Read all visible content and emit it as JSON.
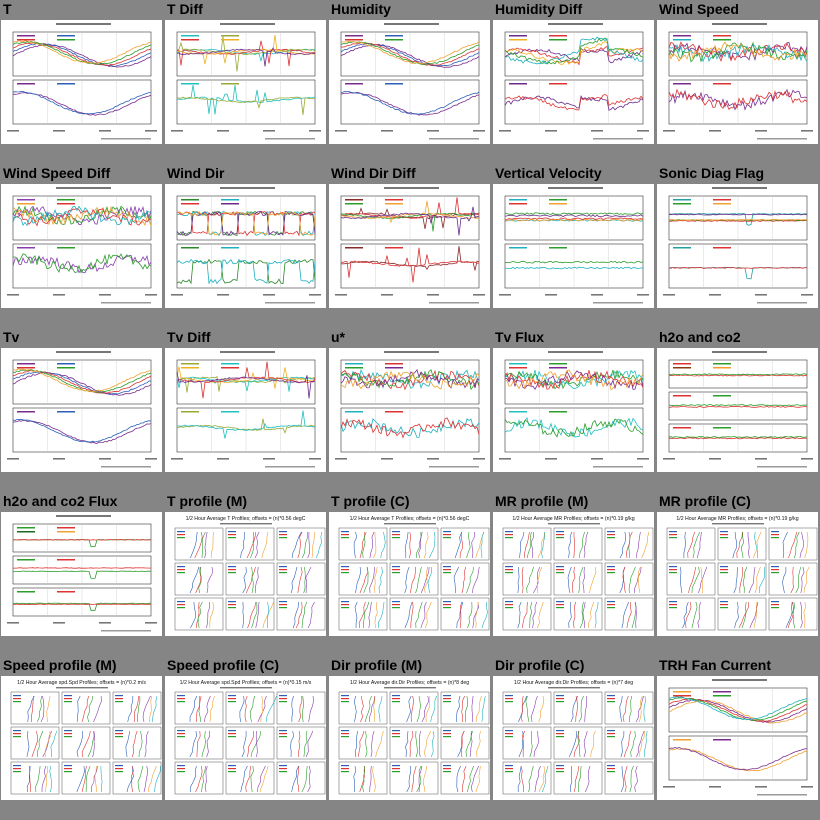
{
  "page": {
    "cells": [
      {
        "title": "T",
        "kind": "ts",
        "panels": 2,
        "variant": "smooth",
        "colors": [
          "#7a2b8c",
          "#2b5fb8",
          "#d33",
          "#2a9d2a",
          "#f0a030",
          "#20b0c0"
        ]
      },
      {
        "title": "T Diff",
        "kind": "ts",
        "panels": 2,
        "variant": "spiky",
        "colors": [
          "#20c0c0",
          "#9a3",
          "#d33",
          "#f0b020",
          "#6a2b8c",
          "#2a9d2a"
        ]
      },
      {
        "title": "Humidity",
        "kind": "ts",
        "panels": 2,
        "variant": "smooth",
        "colors": [
          "#7a2b8c",
          "#2b5fb8",
          "#d33",
          "#2a9d2a",
          "#f0a030",
          "#20b0c0"
        ]
      },
      {
        "title": "Humidity Diff",
        "kind": "ts",
        "panels": 2,
        "variant": "diff",
        "colors": [
          "#6a2b8c",
          "#d33",
          "#f0b020",
          "#2a9d2a",
          "#20b0c0",
          "#2b5fb8"
        ]
      },
      {
        "title": "Wind Speed",
        "kind": "ts",
        "panels": 2,
        "variant": "noisy",
        "colors": [
          "#7a2b8c",
          "#d33",
          "#20b0c0",
          "#2a9d2a",
          "#f0a030",
          "#2b5fb8"
        ]
      },
      {
        "title": "Wind Speed Diff",
        "kind": "ts",
        "panels": 2,
        "variant": "noisy",
        "colors": [
          "#8a3cb0",
          "#2a9d2a",
          "#f0a030",
          "#d33",
          "#20b0c0",
          "#2b5fb8"
        ]
      },
      {
        "title": "Wind Dir",
        "kind": "ts",
        "panels": 2,
        "variant": "blocks",
        "colors": [
          "#2a8a2a",
          "#20b0c0",
          "#d33",
          "#6a2b8c",
          "#f0a030",
          "#2b5fb8"
        ]
      },
      {
        "title": "Wind Dir Diff",
        "kind": "ts",
        "panels": 2,
        "variant": "spiky",
        "colors": [
          "#8a2a2a",
          "#d33",
          "#2a9d2a",
          "#f0a030",
          "#6a2b8c",
          "#2b5fb8"
        ]
      },
      {
        "title": "Vertical Velocity",
        "kind": "ts",
        "panels": 2,
        "variant": "flat",
        "colors": [
          "#20b0c0",
          "#2a9d2a",
          "#d33",
          "#f0a030",
          "#6a2b8c",
          "#2b5fb8"
        ]
      },
      {
        "title": "Sonic Diag Flag",
        "kind": "ts",
        "panels": 2,
        "variant": "flag",
        "colors": [
          "#20a0a0",
          "#d33",
          "#2a9d2a",
          "#f0a030",
          "#6a2b8c",
          "#2b5fb8"
        ]
      },
      {
        "title": "Tv",
        "kind": "ts",
        "panels": 2,
        "variant": "smooth",
        "colors": [
          "#7a2b8c",
          "#2b5fb8",
          "#d33",
          "#2a9d2a",
          "#f0a030",
          "#20b0c0"
        ]
      },
      {
        "title": "Tv Diff",
        "kind": "ts",
        "panels": 2,
        "variant": "spiky",
        "colors": [
          "#9a3",
          "#20c0c0",
          "#f0b020",
          "#d33",
          "#6a2b8c",
          "#2a9d2a"
        ]
      },
      {
        "title": "u*",
        "kind": "ts",
        "panels": 2,
        "variant": "noisy",
        "colors": [
          "#20b0c0",
          "#d33",
          "#2a9d2a",
          "#7a2b8c",
          "#f0a030",
          "#2b5fb8"
        ]
      },
      {
        "title": "Tv Flux",
        "kind": "ts",
        "panels": 2,
        "variant": "noisy",
        "colors": [
          "#20c0c0",
          "#2a9d2a",
          "#d33",
          "#7a2b8c",
          "#f0a030",
          "#2b5fb8"
        ]
      },
      {
        "title": "h2o and co2",
        "kind": "ts",
        "panels": 3,
        "variant": "flat",
        "colors": [
          "#d33",
          "#2a9d2a",
          "#8a3a10",
          "#f0a030",
          "#6a2b8c",
          "#2b5fb8"
        ]
      },
      {
        "title": "h2o and co2 Flux",
        "kind": "ts",
        "panels": 3,
        "variant": "flag",
        "colors": [
          "#2a9d2a",
          "#d33",
          "#1a6a1a",
          "#f0a030",
          "#6a2b8c",
          "#2b5fb8"
        ]
      },
      {
        "title": "T profile (M)",
        "kind": "profile",
        "header": "1/2 Hour Average T Profiles; offsets = (n)*0.56 degC",
        "colors": [
          "#2b5fb8",
          "#d33",
          "#2a9d2a",
          "#8a3cb0",
          "#f0a030",
          "#20b0c0"
        ]
      },
      {
        "title": "T profile (C)",
        "kind": "profile",
        "header": "1/2 Hour Average T Profiles; offsets = (n)*0.56 degC",
        "colors": [
          "#2b5fb8",
          "#d33",
          "#2a9d2a",
          "#8a3cb0",
          "#f0a030",
          "#20b0c0"
        ]
      },
      {
        "title": "MR profile (M)",
        "kind": "profile",
        "header": "1/2 Hour Average MR Profiles; offsets = (n)*0.19 g/kg",
        "colors": [
          "#2b5fb8",
          "#d33",
          "#2a9d2a",
          "#8a3cb0",
          "#f0a030",
          "#20b0c0"
        ]
      },
      {
        "title": "MR profile (C)",
        "kind": "profile",
        "header": "1/2 Hour Average MR Profiles; offsets = (n)*0.19 g/kg",
        "colors": [
          "#2b5fb8",
          "#d33",
          "#2a9d2a",
          "#8a3cb0",
          "#f0a030",
          "#20b0c0"
        ]
      },
      {
        "title": "Speed profile (M)",
        "kind": "profile",
        "header": "1/2 Hour Average spd.Spd Profiles; offsets = (n)*0.2 m/s",
        "colors": [
          "#2b5fb8",
          "#d33",
          "#2a9d2a",
          "#8a3cb0",
          "#f0a030",
          "#20b0c0"
        ]
      },
      {
        "title": "Speed profile (C)",
        "kind": "profile",
        "header": "1/2 Hour Average spd.Spd Profiles; offsets = (n)*0.15 m/s",
        "colors": [
          "#2b5fb8",
          "#d33",
          "#2a9d2a",
          "#8a3cb0",
          "#f0a030",
          "#20b0c0"
        ]
      },
      {
        "title": "Dir profile (M)",
        "kind": "profile",
        "header": "1/2 Hour Average dir.Dir Profiles; offsets = (n)*8 deg",
        "colors": [
          "#2b5fb8",
          "#d33",
          "#2a9d2a",
          "#8a3cb0",
          "#f0a030",
          "#20b0c0"
        ]
      },
      {
        "title": "Dir profile (C)",
        "kind": "profile",
        "header": "1/2 Hour Average dir.Dir Profiles; offsets = (n)*7 deg",
        "colors": [
          "#2b5fb8",
          "#d33",
          "#2a9d2a",
          "#8a3cb0",
          "#f0a030",
          "#20b0c0"
        ]
      },
      {
        "title": "TRH Fan Current",
        "kind": "ts",
        "panels": 2,
        "variant": "smooth",
        "colors": [
          "#f0a030",
          "#7a2b8c",
          "#d33",
          "#2a9d2a",
          "#20b0c0",
          "#2b5fb8"
        ]
      }
    ]
  }
}
